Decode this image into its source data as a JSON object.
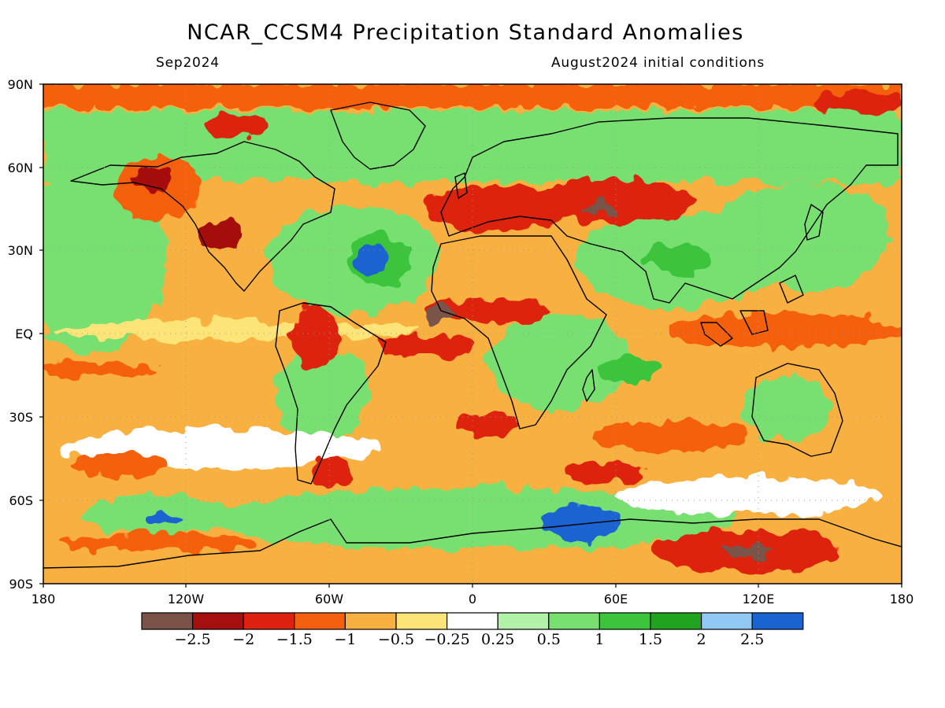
{
  "map": {
    "title": "NCAR_CCSM4 Precipitation Standard Anomalies",
    "valid_month": "Sep2024",
    "init_conditions": "August2024 initial conditions",
    "lat_labels": [
      "90N",
      "60N",
      "30N",
      "EQ",
      "30S",
      "60S",
      "90S"
    ],
    "lon_labels": [
      "180",
      "120W",
      "60W",
      "0",
      "60E",
      "120E",
      "180"
    ],
    "colorbar": {
      "colors": [
        "#7a5248",
        "#a50f0f",
        "#dd2010",
        "#f56010",
        "#f8b040",
        "#fde478",
        "#ffffff",
        "#b2f2a8",
        "#78e070",
        "#3cc43c",
        "#20a420",
        "#92c8f4",
        "#1a64d2"
      ],
      "labels": [
        "-2.5",
        "-2",
        "-1.5",
        "-1",
        "-0.5",
        "-0.25",
        "0.25",
        "0.5",
        "1",
        "1.5",
        "2",
        "2.5"
      ]
    }
  }
}
